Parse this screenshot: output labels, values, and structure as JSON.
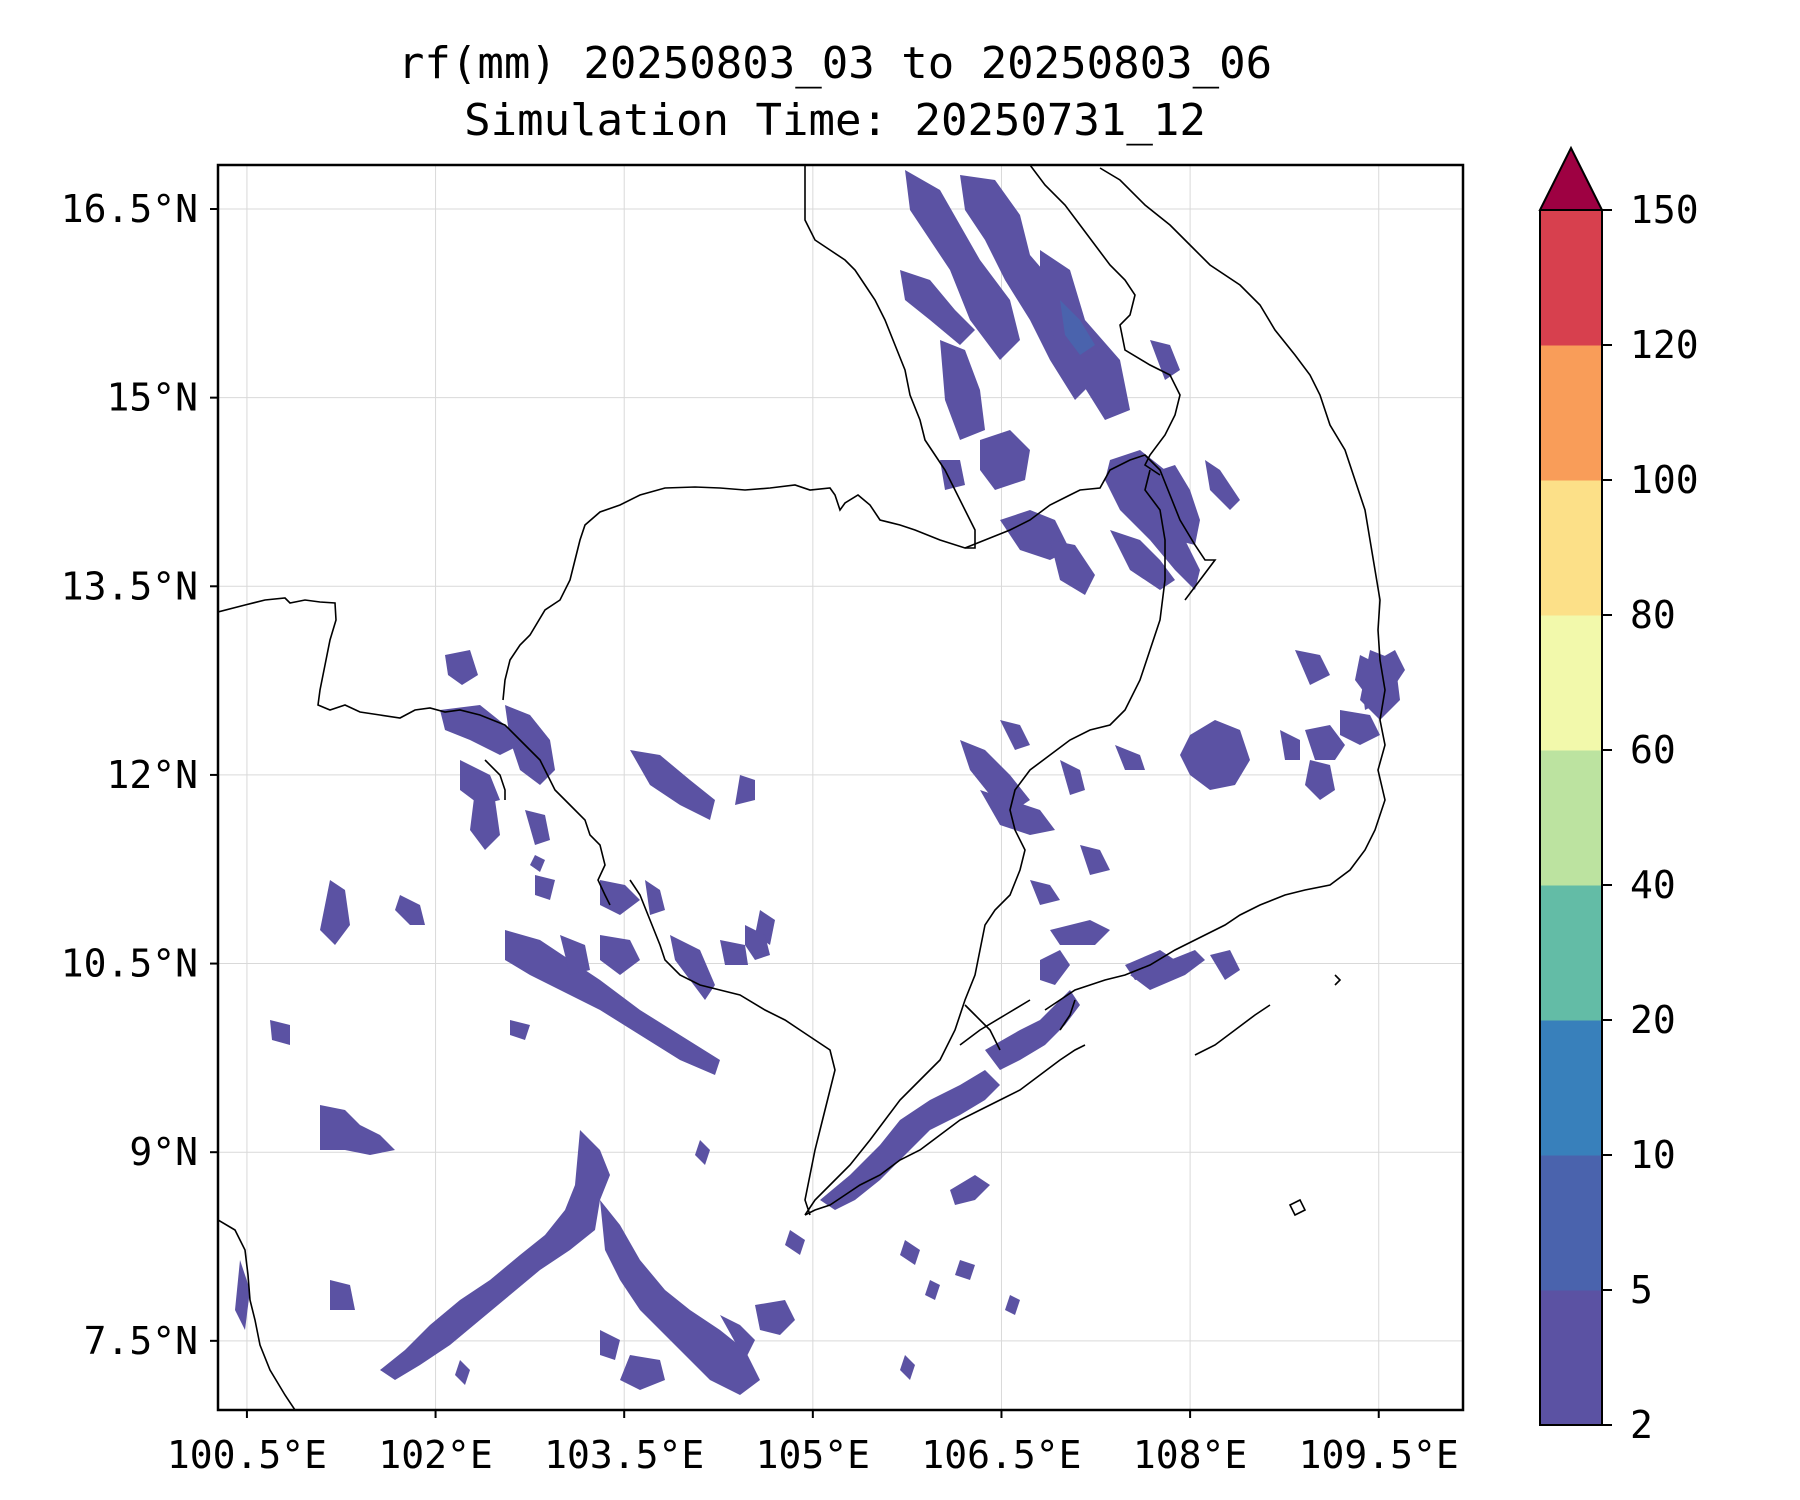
{
  "title": {
    "line1": "rf(mm) 20250803_03 to 20250803_06",
    "line2": "Simulation Time: 20250731_12"
  },
  "map": {
    "lon_range": [
      100.27,
      110.17
    ],
    "lat_range": [
      6.95,
      16.85
    ],
    "lon_ticks": [
      {
        "value": 100.5,
        "label": "100.5°E"
      },
      {
        "value": 102.0,
        "label": "102°E"
      },
      {
        "value": 103.5,
        "label": "103.5°E"
      },
      {
        "value": 105.0,
        "label": "105°E"
      },
      {
        "value": 106.5,
        "label": "106.5°E"
      },
      {
        "value": 108.0,
        "label": "108°E"
      },
      {
        "value": 109.5,
        "label": "109.5°E"
      }
    ],
    "lat_ticks": [
      {
        "value": 16.5,
        "label": "16.5°N"
      },
      {
        "value": 15.0,
        "label": "15°N"
      },
      {
        "value": 13.5,
        "label": "13.5°N"
      },
      {
        "value": 12.0,
        "label": "12°N"
      },
      {
        "value": 10.5,
        "label": "10.5°N"
      },
      {
        "value": 9.0,
        "label": "9°N"
      },
      {
        "value": 7.5,
        "label": "7.5°N"
      }
    ],
    "gridlines": true
  },
  "colorbar": {
    "levels": [
      2,
      5,
      10,
      20,
      40,
      60,
      80,
      100,
      120,
      150
    ],
    "labels": [
      "2",
      "5",
      "10",
      "20",
      "40",
      "60",
      "80",
      "100",
      "120",
      "150"
    ],
    "colors": [
      "#5b52a3",
      "#4a63ad",
      "#3880bb",
      "#63bca6",
      "#bce3a0",
      "#f2f9ab",
      "#fce088",
      "#f99d59",
      "#d7404e"
    ],
    "extend_color": "#9e0142",
    "extend": "max"
  }
}
